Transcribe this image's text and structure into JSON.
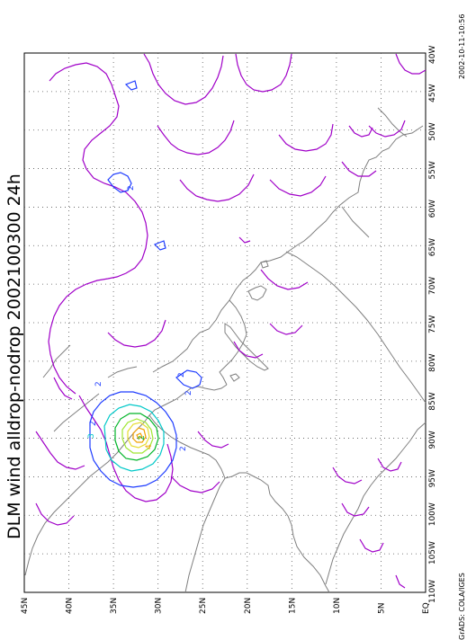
{
  "title": "DLM wind alldrop-nodrop 2002100300 24h",
  "footer_left": "GrADS: COLA/IGES",
  "footer_right": "2002-10-11-10:56",
  "lon_labels": [
    "40W",
    "45W",
    "50W",
    "55W",
    "60W",
    "65W",
    "70W",
    "75W",
    "80W",
    "85W",
    "90W",
    "95W",
    "100W",
    "105W",
    "110W"
  ],
  "lat_labels": [
    "EQ",
    "5N",
    "10N",
    "15N",
    "20N",
    "25N",
    "30N",
    "35N",
    "40N",
    "45N"
  ],
  "contour_labels": [
    "2",
    "2",
    "3",
    "2",
    "2",
    "2",
    "2",
    "2",
    "4"
  ],
  "colors": {
    "purple": "#a000c8",
    "blue": "#1e3cff",
    "cyan": "#00c8c8",
    "green": "#00b428",
    "lime": "#a0e632",
    "yellow": "#e6dc32",
    "orange": "#f0a000",
    "coast": "#7f7f7f",
    "grid": "#555555"
  }
}
